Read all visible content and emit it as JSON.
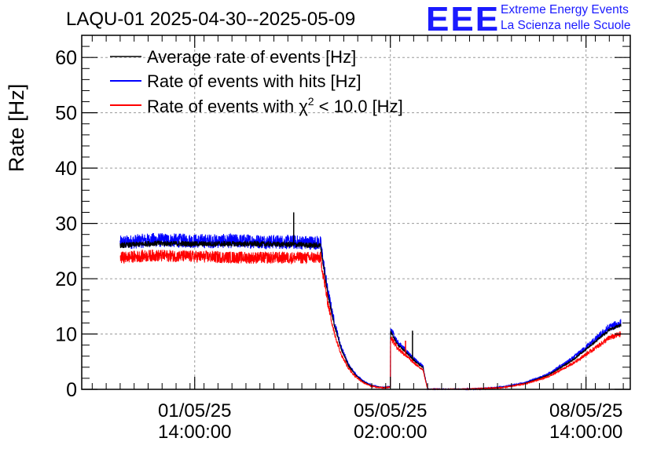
{
  "header": {
    "title": "LAQU-01 2025-04-30--2025-05-09",
    "logo_text": "EEE",
    "org_line1": "Extreme Energy Events",
    "org_line2": "La Scienza nelle Scuole"
  },
  "colors": {
    "average": "#000000",
    "hits": "#0000ff",
    "chi2": "#ff0000",
    "logo": "#1a1aff",
    "grid": "#9a9a9a"
  },
  "chart_data": {
    "type": "line",
    "title": "LAQU-01 2025-04-30--2025-05-09",
    "xlabel": "",
    "ylabel": "Rate [Hz]",
    "x_unit": "hours since 2025-04-30 00:00",
    "xlim": [
      -10.5,
      225
    ],
    "ylim": [
      0,
      64
    ],
    "y_ticks": [
      0,
      10,
      20,
      30,
      40,
      50,
      60
    ],
    "grid": true,
    "legend_position": "top-left",
    "x_ticks": [
      {
        "x": 38,
        "label_line1": "01/05/25",
        "label_line2": "14:00:00"
      },
      {
        "x": 122,
        "label_line1": "05/05/25",
        "label_line2": "02:00:00"
      },
      {
        "x": 206,
        "label_line1": "08/05/25",
        "label_line2": "14:00:00"
      }
    ],
    "legend": [
      {
        "name": "Average rate of events [Hz]",
        "color": "#000000"
      },
      {
        "name": "Rate of events with hits [Hz]",
        "color": "#0000ff"
      },
      {
        "name_before": "Rate of events with χ",
        "superscript": "2",
        "name_after": " < 10.0 [Hz]",
        "color": "#ff0000"
      }
    ],
    "series": [
      {
        "name": "Rate of events with hits",
        "color": "#0000ff",
        "x": [
          6,
          20,
          40,
          60,
          80,
          92,
          95,
          98,
          101,
          104,
          107,
          110,
          113,
          116,
          119,
          122,
          122.1,
          125,
          128,
          131,
          134,
          136,
          137,
          138,
          150,
          160,
          170,
          180,
          190,
          200,
          210,
          216,
          221
        ],
        "mean": [
          26.5,
          27,
          26.8,
          26.8,
          26.6,
          26.5,
          18,
          12,
          7.5,
          4.5,
          2.8,
          1.6,
          0.9,
          0.5,
          0.3,
          0.5,
          11,
          8.5,
          7.3,
          6.0,
          4.8,
          4.2,
          2,
          0,
          0,
          0.1,
          0.4,
          1.2,
          2.8,
          5.5,
          9.0,
          11.2,
          12.0
        ],
        "noise": 1.3
      },
      {
        "name": "Average rate of events",
        "color": "#000000",
        "x": [
          6,
          20,
          40,
          60,
          80,
          92,
          95,
          98,
          101,
          104,
          107,
          110,
          113,
          116,
          119,
          122,
          122.1,
          125,
          128,
          131,
          134,
          136,
          137,
          138,
          150,
          160,
          170,
          180,
          190,
          200,
          210,
          216,
          221
        ],
        "mean": [
          26,
          26.4,
          26.3,
          26.3,
          26.2,
          26,
          17.5,
          11.5,
          7.2,
          4.3,
          2.6,
          1.5,
          0.8,
          0.45,
          0.3,
          0.45,
          10.5,
          8.1,
          7.0,
          5.7,
          4.6,
          4.0,
          1.9,
          0,
          0,
          0.1,
          0.35,
          1.1,
          2.6,
          5.2,
          8.6,
          10.8,
          11.6
        ],
        "noise": 0.5,
        "spikes": [
          {
            "x": 80.5,
            "value": 32
          },
          {
            "x": 131.5,
            "value": 10.6
          }
        ]
      },
      {
        "name": "Rate of events with chi2 < 10.0",
        "color": "#ff0000",
        "x": [
          6,
          20,
          40,
          60,
          80,
          92,
          95,
          98,
          101,
          104,
          107,
          110,
          113,
          116,
          119,
          122,
          122.1,
          125,
          128,
          131,
          134,
          136,
          137,
          138,
          150,
          160,
          170,
          180,
          190,
          200,
          210,
          216,
          221
        ],
        "mean": [
          23.8,
          24.2,
          24.0,
          23.8,
          23.8,
          23.8,
          16,
          10,
          6.3,
          3.8,
          2.3,
          1.3,
          0.7,
          0.4,
          0.25,
          0.4,
          9.5,
          7.5,
          6.4,
          5.2,
          4.1,
          3.6,
          1.7,
          0,
          0,
          0.1,
          0.3,
          1.0,
          2.3,
          4.6,
          7.5,
          9.3,
          10.0
        ],
        "noise": 1.1,
        "spikes": [
          {
            "x": 128.5,
            "value": 8.8
          }
        ]
      }
    ]
  }
}
